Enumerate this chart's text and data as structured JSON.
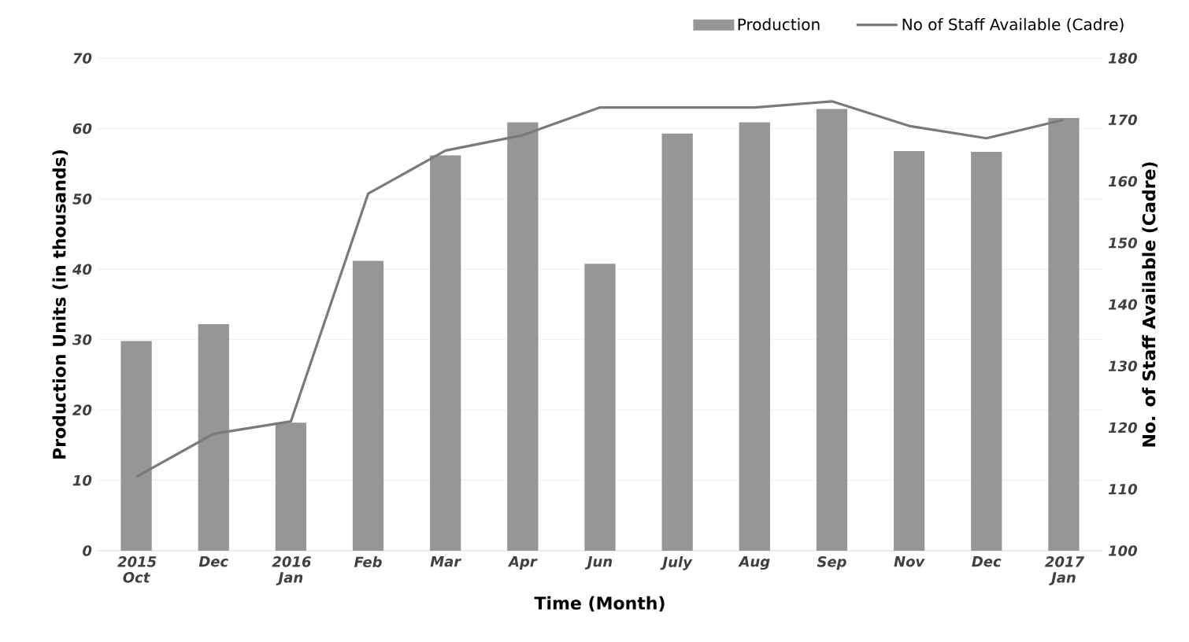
{
  "chart_data": {
    "type": "bar",
    "xlabel": "Time (Month)",
    "ylabel": "Production Units (in thousands)",
    "y2label": "No. of Staff Available (Cadre)",
    "categories": [
      "2015 Oct",
      "Dec",
      "2016 Jan",
      "Feb",
      "Mar",
      "Apr",
      "Jun",
      "July",
      "Aug",
      "Sep",
      "Nov",
      "Dec",
      "2017 Jan"
    ],
    "series": [
      {
        "name": "Production",
        "color": "#969696",
        "values": [
          29.8,
          32.2,
          18.2,
          41.2,
          56.2,
          60.9,
          40.8,
          59.3,
          60.9,
          62.8,
          56.8,
          56.7,
          61.5
        ]
      },
      {
        "name": "No of Staff Available (Cadre)",
        "type": "line",
        "axis": "y2",
        "color": "#7a7a7a",
        "values": [
          112,
          119,
          121,
          158,
          165,
          167.5,
          172,
          172,
          172,
          173,
          169,
          167,
          170
        ]
      }
    ],
    "ylim": [
      0,
      70
    ],
    "yticks": [
      0,
      10,
      20,
      30,
      40,
      50,
      60,
      70
    ],
    "y2lim": [
      100,
      180
    ],
    "y2ticks": [
      100,
      110,
      120,
      130,
      140,
      150,
      160,
      170,
      180
    ],
    "grid": "y",
    "legend": "top right",
    "marker": "none",
    "line_style": "solid"
  }
}
